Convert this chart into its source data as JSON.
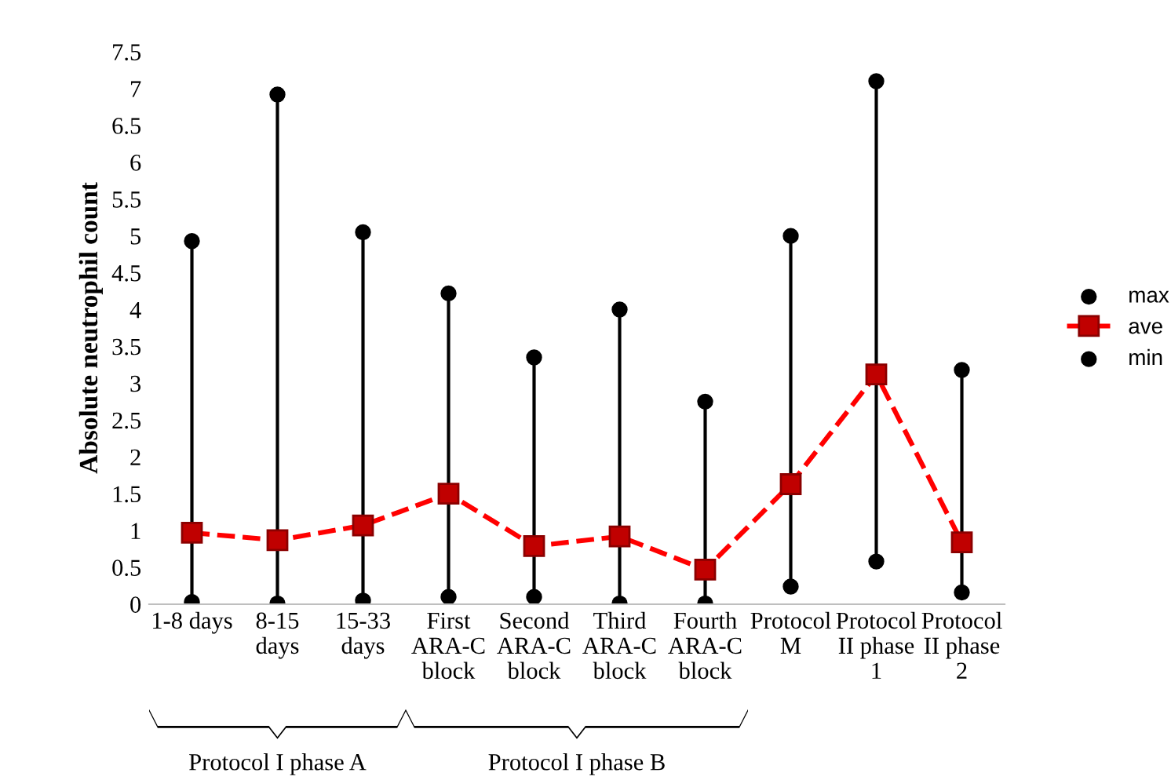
{
  "chart_data": {
    "type": "scatter",
    "ylabel": "Absolute neutrophil count",
    "categories": [
      "1-8 days",
      "8-15\ndays",
      "15-33\ndays",
      "First\nARA-C\nblock",
      "Second\nARA-C\nblock",
      "Third\nARA-C\nblock",
      "Fourth\nARA-C\nblock",
      "Protocol\nM",
      "Protocol\nII phase\n1",
      "Protocol\nII phase\n2"
    ],
    "series": [
      {
        "name": "max",
        "color": "#000000",
        "marker": "circle",
        "values": [
          4.93,
          6.92,
          5.05,
          4.22,
          3.35,
          4.0,
          2.75,
          5.0,
          7.1,
          3.18
        ]
      },
      {
        "name": "ave",
        "type": "line",
        "color": "#ff0000",
        "marker": "square",
        "line_style": "dashed",
        "values": [
          0.97,
          0.87,
          1.07,
          1.5,
          0.79,
          0.92,
          0.47,
          1.63,
          3.12,
          0.84
        ]
      },
      {
        "name": "min",
        "color": "#000000",
        "marker": "circle",
        "values": [
          0.03,
          0.01,
          0.05,
          0.1,
          0.1,
          0.01,
          0.01,
          0.24,
          0.58,
          0.16
        ]
      }
    ],
    "ylim": [
      0,
      7.5
    ],
    "yticks": [
      0,
      0.5,
      1,
      1.5,
      2,
      2.5,
      3,
      3.5,
      4,
      4.5,
      5,
      5.5,
      6,
      6.5,
      7,
      7.5
    ],
    "legend": "right",
    "annotations": [
      "Protocol I phase A",
      "Protocol I phase B"
    ]
  }
}
